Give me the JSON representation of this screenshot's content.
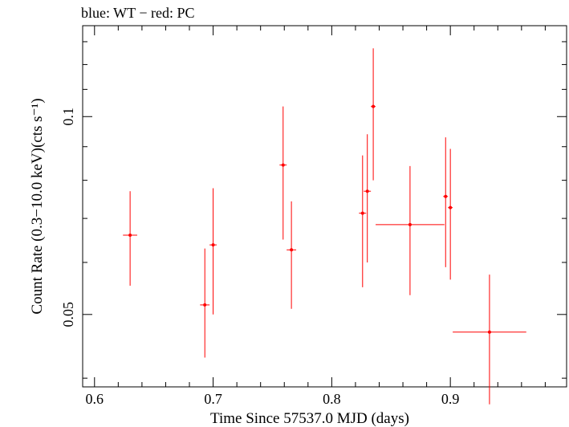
{
  "chart_data": {
    "type": "scatter",
    "title": "blue: WT − red: PC",
    "xlabel": "Time Since 57537.0 MJD (days)",
    "ylabel": "Count Rate (0.3−10.0 keV)(cts s⁻¹)",
    "x_scale": "linear",
    "y_scale": "log",
    "xlim": [
      0.59,
      0.998
    ],
    "ylim": [
      0.0388,
      0.1375
    ],
    "x_ticks": [
      "0.6",
      "0.7",
      "0.8",
      "0.9"
    ],
    "y_ticks": [
      "0.05",
      "0.1"
    ],
    "grid": false,
    "colors": {
      "PC": "#ff0000",
      "WT": "#0000ff"
    },
    "series": [
      {
        "name": "PC",
        "points": [
          {
            "x": 0.63,
            "xerr": 0.006,
            "y": 0.066,
            "ylo": 0.0553,
            "yhi": 0.077
          },
          {
            "x": 0.693,
            "xerr": 0.004,
            "y": 0.0517,
            "ylo": 0.043,
            "yhi": 0.063
          },
          {
            "x": 0.7,
            "xerr": 0.003,
            "y": 0.0638,
            "ylo": 0.05,
            "yhi": 0.0778
          },
          {
            "x": 0.759,
            "xerr": 0.003,
            "y": 0.0844,
            "ylo": 0.065,
            "yhi": 0.1036
          },
          {
            "x": 0.766,
            "xerr": 0.004,
            "y": 0.0627,
            "ylo": 0.051,
            "yhi": 0.0743
          },
          {
            "x": 0.826,
            "xerr": 0.003,
            "y": 0.0713,
            "ylo": 0.055,
            "yhi": 0.0873
          },
          {
            "x": 0.83,
            "xerr": 0.003,
            "y": 0.077,
            "ylo": 0.06,
            "yhi": 0.094
          },
          {
            "x": 0.835,
            "xerr": 0.002,
            "y": 0.1036,
            "ylo": 0.08,
            "yhi": 0.127
          },
          {
            "x": 0.866,
            "xerr": 0.029,
            "y": 0.0685,
            "ylo": 0.0535,
            "yhi": 0.0841
          },
          {
            "x": 0.896,
            "xerr": 0.002,
            "y": 0.0756,
            "ylo": 0.059,
            "yhi": 0.093
          },
          {
            "x": 0.9,
            "xerr": 0.002,
            "y": 0.0727,
            "ylo": 0.0565,
            "yhi": 0.0893
          },
          {
            "x": 0.933,
            "xerr": 0.031,
            "y": 0.047,
            "ylo": 0.0365,
            "yhi": 0.0575
          }
        ]
      }
    ]
  }
}
